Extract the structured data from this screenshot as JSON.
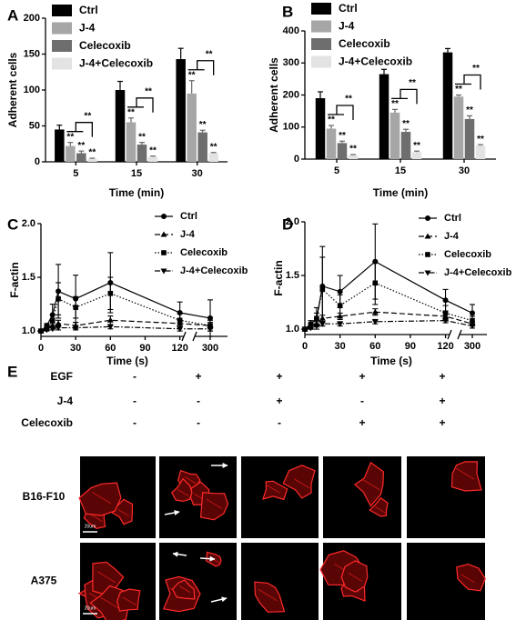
{
  "chart_data": [
    {
      "type": "bar",
      "label": "A",
      "ylabel": "Adherent cells",
      "xlabel": "Time (min)",
      "categories": [
        "5",
        "15",
        "30"
      ],
      "ylim": [
        0,
        200
      ],
      "yticks": [
        0,
        50,
        100,
        150,
        200
      ],
      "series": [
        {
          "name": "Ctrl",
          "color": "#000000",
          "values": [
            45,
            100,
            143
          ],
          "errors": [
            6,
            12,
            15
          ]
        },
        {
          "name": "J-4",
          "color": "#a6a6a6",
          "values": [
            22,
            55,
            95
          ],
          "errors": [
            5,
            6,
            18
          ],
          "labels": [
            "**",
            "**",
            "**"
          ]
        },
        {
          "name": "Celecoxib",
          "color": "#6e6e6e",
          "values": [
            12,
            24,
            41
          ],
          "errors": [
            3,
            3,
            3
          ],
          "labels": [
            "**",
            "**",
            "**"
          ]
        },
        {
          "name": "J-4+Celecoxib",
          "color": "#e3e3e3",
          "values": [
            4,
            7,
            12
          ],
          "errors": [
            1,
            1,
            1
          ],
          "labels": [
            "**",
            "**",
            "**"
          ]
        }
      ],
      "brackets": [
        "**",
        "**",
        "**"
      ]
    },
    {
      "type": "bar",
      "label": "B",
      "ylabel": "Adherent cells",
      "xlabel": "Time (min)",
      "categories": [
        "5",
        "15",
        "30"
      ],
      "ylim": [
        0,
        400
      ],
      "yticks": [
        0,
        100,
        200,
        300,
        400
      ],
      "series": [
        {
          "name": "Ctrl",
          "color": "#000000",
          "values": [
            190,
            265,
            333
          ],
          "errors": [
            20,
            15,
            12
          ]
        },
        {
          "name": "J-4",
          "color": "#a6a6a6",
          "values": [
            95,
            145,
            195
          ],
          "errors": [
            10,
            10,
            5
          ],
          "labels": [
            "**",
            "**",
            "**"
          ]
        },
        {
          "name": "Celecoxib",
          "color": "#6e6e6e",
          "values": [
            50,
            85,
            125
          ],
          "errors": [
            6,
            8,
            10
          ],
          "labels": [
            "**",
            "**",
            "**"
          ]
        },
        {
          "name": "J-4+Celecoxib",
          "color": "#e3e3e3",
          "values": [
            12,
            22,
            42
          ],
          "errors": [
            2,
            3,
            3
          ],
          "labels": [
            "**",
            "**",
            "**"
          ]
        }
      ],
      "brackets": [
        "**",
        "**",
        "**"
      ]
    },
    {
      "type": "line",
      "label": "C",
      "ylabel": "F-actin",
      "xlabel": "Time (s)",
      "x": [
        0,
        5,
        10,
        15,
        30,
        60,
        120,
        300
      ],
      "x_segments": [
        [
          0,
          125
        ],
        [
          285,
          315
        ]
      ],
      "xticks": [
        0,
        30,
        60,
        90,
        120,
        300
      ],
      "ylim": [
        0.95,
        2.0
      ],
      "yticks": [
        {
          "value": 1.0,
          "label": "1.0"
        },
        {
          "value": 1.5,
          "label": "1.5"
        },
        {
          "value": 2.0,
          "label": "2.0"
        }
      ],
      "series": [
        {
          "name": "Ctrl",
          "color": "#000000",
          "line_style": "solid",
          "marker": "circle",
          "values": [
            1.0,
            1.05,
            1.15,
            1.37,
            1.3,
            1.45,
            1.17,
            1.12
          ],
          "errors": [
            0,
            0.02,
            0.1,
            0.25,
            0.22,
            0.28,
            0.1,
            0.17
          ]
        },
        {
          "name": "J-4",
          "color": "#000000",
          "line_style": "dashed",
          "marker": "triangle-up",
          "values": [
            1.0,
            1.02,
            1.05,
            1.07,
            1.05,
            1.1,
            1.07,
            1.05
          ],
          "errors": [
            0,
            0.01,
            0.02,
            0.03,
            0.03,
            0.04,
            0.03,
            0.03
          ]
        },
        {
          "name": "Celecoxib",
          "color": "#000000",
          "line_style": "dotted",
          "marker": "square",
          "values": [
            1.0,
            1.03,
            1.1,
            1.3,
            1.22,
            1.35,
            1.1,
            1.05
          ],
          "errors": [
            0,
            0.02,
            0.05,
            0.15,
            0.1,
            0.15,
            0.06,
            0.05
          ]
        },
        {
          "name": "J-4+Celecoxib",
          "color": "#000000",
          "line_style": "dashdot",
          "marker": "triangle-down",
          "values": [
            1.0,
            1.01,
            1.02,
            1.03,
            1.03,
            1.04,
            1.02,
            1.02
          ],
          "errors": [
            0,
            0.01,
            0.01,
            0.02,
            0.02,
            0.02,
            0.02,
            0.02
          ]
        }
      ]
    },
    {
      "type": "line",
      "label": "D",
      "ylabel": "F-actin",
      "xlabel": "Time (s)",
      "x": [
        0,
        5,
        10,
        15,
        30,
        60,
        120,
        300
      ],
      "x_segments": [
        [
          0,
          125
        ],
        [
          285,
          315
        ]
      ],
      "xticks": [
        0,
        30,
        60,
        90,
        120,
        300
      ],
      "ylim": [
        0.95,
        2.0
      ],
      "yticks": [
        {
          "value": 1.0,
          "label": "1.0"
        },
        {
          "value": 1.5,
          "label": "1.5"
        },
        {
          "value": 2.0,
          "label": "2.0"
        }
      ],
      "series": [
        {
          "name": "Ctrl",
          "color": "#000000",
          "line_style": "solid",
          "marker": "circle",
          "values": [
            1.0,
            1.05,
            1.1,
            1.4,
            1.35,
            1.63,
            1.27,
            1.15
          ],
          "errors": [
            0,
            0.03,
            0.1,
            0.37,
            0.15,
            0.35,
            0.1,
            0.08
          ]
        },
        {
          "name": "J-4",
          "color": "#000000",
          "line_style": "dashed",
          "marker": "triangle-up",
          "values": [
            1.0,
            1.02,
            1.05,
            1.1,
            1.12,
            1.16,
            1.12,
            1.05
          ],
          "errors": [
            0,
            0.01,
            0.02,
            0.03,
            0.03,
            0.03,
            0.03,
            0.02
          ]
        },
        {
          "name": "Celecoxib",
          "color": "#000000",
          "line_style": "dotted",
          "marker": "square",
          "values": [
            1.0,
            1.03,
            1.1,
            1.37,
            1.22,
            1.43,
            1.15,
            1.08
          ],
          "errors": [
            0,
            0.03,
            0.05,
            0.3,
            0.1,
            0.2,
            0.07,
            0.04
          ]
        },
        {
          "name": "J-4+Celecoxib",
          "color": "#000000",
          "line_style": "dashdot",
          "marker": "triangle-down",
          "values": [
            1.0,
            1.01,
            1.03,
            1.05,
            1.05,
            1.07,
            1.08,
            1.03
          ],
          "errors": [
            0,
            0.01,
            0.01,
            0.02,
            0.02,
            0.02,
            0.02,
            0.02
          ]
        }
      ]
    }
  ],
  "panel_e": {
    "label": "E",
    "row_headers": [
      "EGF",
      "J-4",
      "Celecoxib"
    ],
    "treatments": [
      [
        "-",
        "+",
        "+",
        "+",
        "+"
      ],
      [
        "-",
        "-",
        "+",
        "-",
        "+"
      ],
      [
        "-",
        "-",
        "-",
        "+",
        "+"
      ]
    ],
    "cell_lines": [
      "B16-F10",
      "A375"
    ],
    "scale_bar": "20um"
  }
}
